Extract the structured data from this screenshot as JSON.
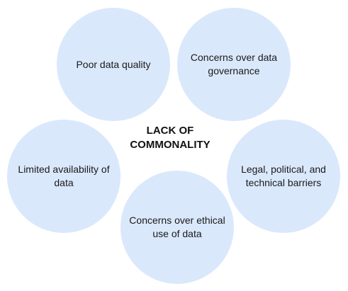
{
  "center_title": "LACK OF\nCOMMONALITY",
  "circles": [
    {
      "label": "Poor data quality"
    },
    {
      "label": "Concerns over data governance"
    },
    {
      "label": "Limited availability of data"
    },
    {
      "label": "Legal, political, and technical barriers"
    },
    {
      "label": "Concerns over ethical use of data"
    }
  ],
  "colors": {
    "circle_fill": "#dae8fc",
    "text": "#1a1a1a"
  }
}
